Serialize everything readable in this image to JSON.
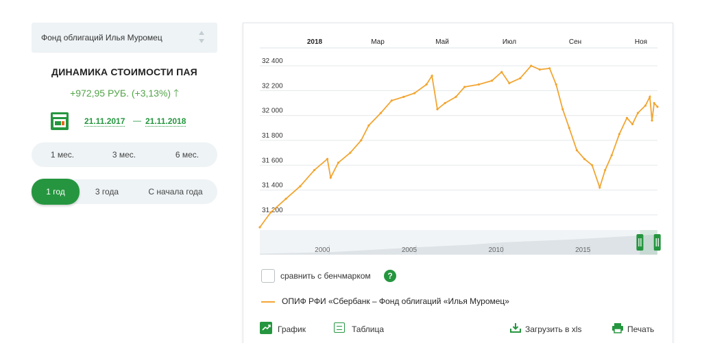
{
  "fund_select": {
    "value": "Фонд облигаций Илья Муромец"
  },
  "dynamics": {
    "title": "ДИНАМИКА СТОИМОСТИ ПАЯ",
    "change": "+972,95 РУБ. (+3,13%)"
  },
  "dates": {
    "from": "21.11.2017",
    "separator": "—",
    "to": "21.11.2018"
  },
  "periods_row1": [
    "1 мес.",
    "3 мес.",
    "6 мес."
  ],
  "periods_row2": [
    "1 год",
    "3 года",
    "С начала года"
  ],
  "active_period": "1 год",
  "benchmark": {
    "label": "сравнить с бенчмарком",
    "help": "?",
    "checked": false
  },
  "legend": {
    "label": "ОПИФ РФИ «Сбербанк – Фонд облигаций «Илья Муромец»"
  },
  "toolbar": {
    "graph_label": "График",
    "table_label": "Таблица",
    "xls_label": "Загрузить в xls",
    "print_label": "Печать"
  },
  "colors": {
    "accent": "#25963f",
    "series": "#f2a531",
    "positive": "#51a347"
  },
  "chart_data": {
    "type": "line",
    "title": "",
    "x_axis_labels": [
      "2018",
      "Мар",
      "Май",
      "Июл",
      "Сен",
      "Ноя"
    ],
    "y_ticks": [
      "32 400",
      "32 200",
      "32 000",
      "31 800",
      "31 600",
      "31 400",
      "31 200"
    ],
    "ylim": [
      31100,
      32500
    ],
    "grid": true,
    "series": [
      {
        "points": [
          [
            "2017-11-21",
            31100
          ],
          [
            "2017-12-01",
            31220
          ],
          [
            "2017-12-15",
            31330
          ],
          [
            "2017-12-28",
            31430
          ],
          [
            "2018-01-10",
            31560
          ],
          [
            "2018-01-22",
            31650
          ],
          [
            "2018-01-25",
            31500
          ],
          [
            "2018-02-01",
            31620
          ],
          [
            "2018-02-12",
            31700
          ],
          [
            "2018-02-22",
            31800
          ],
          [
            "2018-03-01",
            31920
          ],
          [
            "2018-03-12",
            32020
          ],
          [
            "2018-03-22",
            32120
          ],
          [
            "2018-04-02",
            32150
          ],
          [
            "2018-04-12",
            32180
          ],
          [
            "2018-04-23",
            32250
          ],
          [
            "2018-04-28",
            32320
          ],
          [
            "2018-05-03",
            32050
          ],
          [
            "2018-05-10",
            32100
          ],
          [
            "2018-05-20",
            32150
          ],
          [
            "2018-05-28",
            32230
          ],
          [
            "2018-06-10",
            32250
          ],
          [
            "2018-06-22",
            32280
          ],
          [
            "2018-07-01",
            32350
          ],
          [
            "2018-07-08",
            32260
          ],
          [
            "2018-07-18",
            32300
          ],
          [
            "2018-07-28",
            32400
          ],
          [
            "2018-08-05",
            32370
          ],
          [
            "2018-08-14",
            32380
          ],
          [
            "2018-08-20",
            32250
          ],
          [
            "2018-08-26",
            32050
          ],
          [
            "2018-09-01",
            31900
          ],
          [
            "2018-09-08",
            31720
          ],
          [
            "2018-09-15",
            31650
          ],
          [
            "2018-09-22",
            31600
          ],
          [
            "2018-09-29",
            31420
          ],
          [
            "2018-10-04",
            31560
          ],
          [
            "2018-10-10",
            31680
          ],
          [
            "2018-10-17",
            31850
          ],
          [
            "2018-10-24",
            31980
          ],
          [
            "2018-10-29",
            31930
          ],
          [
            "2018-11-03",
            32020
          ],
          [
            "2018-11-10",
            32080
          ],
          [
            "2018-11-14",
            32150
          ],
          [
            "2018-11-16",
            31960
          ],
          [
            "2018-11-18",
            32100
          ],
          [
            "2018-11-21",
            32070
          ]
        ]
      }
    ],
    "navigator": {
      "x_axis_labels": [
        "2000",
        "2005",
        "2010",
        "2015"
      ],
      "xlim": [
        1996,
        2018.9
      ],
      "trend": [
        [
          1996,
          0.04
        ],
        [
          2000,
          0.1
        ],
        [
          2005,
          0.3
        ],
        [
          2008,
          0.4
        ],
        [
          2010,
          0.5
        ],
        [
          2014,
          0.62
        ],
        [
          2018.9,
          0.82
        ]
      ],
      "selection": [
        2017.89,
        2018.89
      ]
    }
  }
}
